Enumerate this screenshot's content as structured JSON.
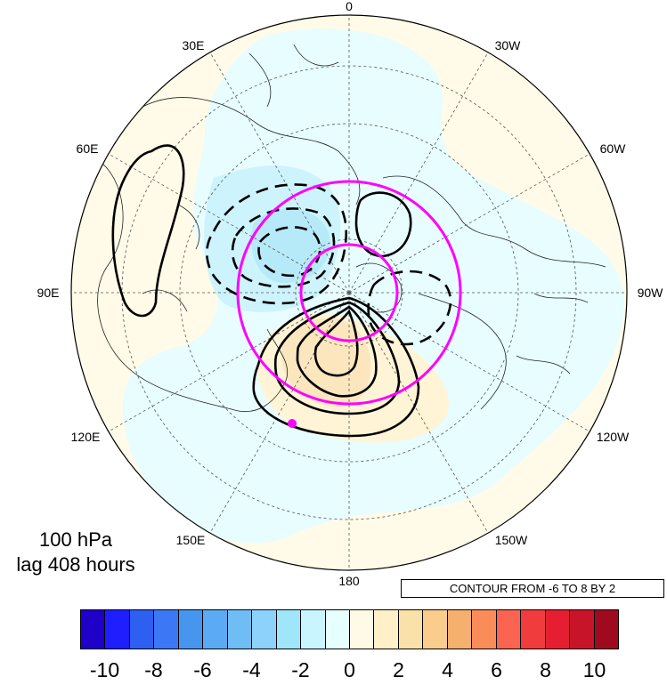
{
  "map": {
    "projection": "north-polar-stereographic",
    "lon_labels": {
      "top": "0",
      "top_left": "30E",
      "top_right": "30W",
      "upper_left": "60E",
      "upper_right": "60W",
      "left": "90E",
      "right": "90W",
      "lower_left": "120E",
      "lower_right": "120W",
      "bottom_left": "150E",
      "bottom_right": "150W",
      "bottom": "180"
    },
    "level": "100 hPa",
    "lag": "lag 408 hours",
    "contour_info": "CONTOUR FROM -6 TO 8 BY 2",
    "contour_color": "#000000",
    "circle_color": "#ff00ff"
  },
  "colorbar": {
    "colors": [
      "#1e00c8",
      "#1e1eff",
      "#2d5ff0",
      "#3c78f5",
      "#4696f0",
      "#5aaaf5",
      "#6ebef5",
      "#8cd2fa",
      "#a0e6fa",
      "#c8f5ff",
      "#e6ffff",
      "#fffae6",
      "#fff0c8",
      "#fae1aa",
      "#facd8c",
      "#f5af6e",
      "#fa8c5a",
      "#fa6450",
      "#f03c3c",
      "#e61e32",
      "#c81428",
      "#a00a1e"
    ],
    "tick_labels": [
      "-10",
      "-8",
      "-6",
      "-4",
      "-2",
      "0",
      "2",
      "4",
      "6",
      "8",
      "10"
    ]
  }
}
